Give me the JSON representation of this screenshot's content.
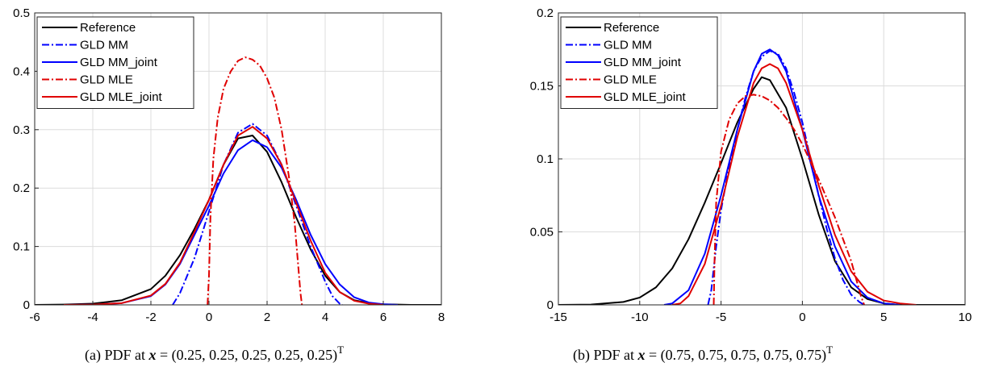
{
  "chart_data": [
    {
      "type": "line",
      "caption": "(a) PDF at x = (0.25, 0.25, 0.25, 0.25, 0.25)^T",
      "caption_parts": {
        "label": "(a) PDF at ",
        "var": "x",
        "vector": " = (0.25, 0.25, 0.25, 0.25, 0.25)",
        "sup": "T"
      },
      "xlim": [
        -6,
        8
      ],
      "ylim": [
        0,
        0.5
      ],
      "xticks": [
        -6,
        -4,
        -2,
        0,
        2,
        4,
        6,
        8
      ],
      "yticks": [
        0,
        0.1,
        0.2,
        0.3,
        0.4,
        0.5
      ],
      "xtick_labels": [
        "-6",
        "-4",
        "-2",
        "0",
        "2",
        "4",
        "6",
        "8"
      ],
      "ytick_labels": [
        "0",
        "0.1",
        "0.2",
        "0.3",
        "0.4",
        "0.5"
      ],
      "grid": true,
      "legend_position": "top-left",
      "series": [
        {
          "name": "Reference",
          "color": "#000000",
          "dash": "solid",
          "x": [
            -6,
            -5,
            -4,
            -3,
            -2,
            -1.5,
            -1,
            -0.5,
            0,
            0.5,
            1,
            1.5,
            2,
            2.5,
            3,
            3.5,
            4,
            4.5,
            5,
            5.5,
            6,
            7,
            8
          ],
          "y": [
            0,
            0.0005,
            0.002,
            0.008,
            0.027,
            0.05,
            0.085,
            0.13,
            0.18,
            0.24,
            0.285,
            0.29,
            0.262,
            0.21,
            0.15,
            0.095,
            0.05,
            0.022,
            0.008,
            0.003,
            0.001,
            0,
            0
          ]
        },
        {
          "name": "GLD MM",
          "color": "#0000ff",
          "dash": "dashdot",
          "x": [
            -1.25,
            -1,
            -0.5,
            0,
            0.5,
            1,
            1.5,
            2,
            2.5,
            3,
            3.5,
            4,
            4.25,
            4.5,
            4.6
          ],
          "y": [
            0,
            0.02,
            0.08,
            0.16,
            0.24,
            0.295,
            0.31,
            0.29,
            0.24,
            0.17,
            0.1,
            0.04,
            0.015,
            0.002,
            0
          ]
        },
        {
          "name": "GLD MM_joint",
          "color": "#0000ff",
          "dash": "solid",
          "x": [
            -5,
            -4,
            -3,
            -2,
            -1.5,
            -1,
            -0.5,
            0,
            0.5,
            1,
            1.5,
            2,
            2.5,
            3,
            3.5,
            4,
            4.5,
            5,
            5.5,
            6,
            6.5
          ],
          "y": [
            0,
            0.0005,
            0.003,
            0.015,
            0.035,
            0.07,
            0.12,
            0.17,
            0.225,
            0.265,
            0.282,
            0.27,
            0.235,
            0.18,
            0.12,
            0.07,
            0.035,
            0.013,
            0.004,
            0.001,
            0
          ]
        },
        {
          "name": "GLD MLE",
          "color": "#e00000",
          "dash": "dashdot",
          "x": [
            -0.05,
            0,
            0.05,
            0.15,
            0.3,
            0.5,
            0.75,
            1,
            1.25,
            1.5,
            1.75,
            2,
            2.25,
            2.5,
            2.75,
            2.95,
            3.05,
            3.15,
            3.2
          ],
          "y": [
            0,
            0.05,
            0.15,
            0.25,
            0.32,
            0.37,
            0.4,
            0.418,
            0.424,
            0.42,
            0.41,
            0.388,
            0.355,
            0.3,
            0.22,
            0.14,
            0.08,
            0.02,
            0
          ]
        },
        {
          "name": "GLD MLE_joint",
          "color": "#e00000",
          "dash": "solid",
          "x": [
            -5,
            -4,
            -3,
            -2,
            -1.5,
            -1,
            -0.5,
            0,
            0.5,
            1,
            1.5,
            2,
            2.5,
            3,
            3.5,
            4,
            4.5,
            5,
            5.5,
            6
          ],
          "y": [
            0,
            0.0005,
            0.003,
            0.016,
            0.036,
            0.072,
            0.125,
            0.18,
            0.24,
            0.29,
            0.305,
            0.285,
            0.24,
            0.175,
            0.11,
            0.055,
            0.022,
            0.007,
            0.002,
            0
          ]
        }
      ]
    },
    {
      "type": "line",
      "caption": "(b) PDF at x = (0.75, 0.75, 0.75, 0.75, 0.75)^T",
      "caption_parts": {
        "label": "(b) PDF at ",
        "var": "x",
        "vector": " = (0.75, 0.75, 0.75, 0.75, 0.75)",
        "sup": "T"
      },
      "xlim": [
        -15,
        10
      ],
      "ylim": [
        0,
        0.2
      ],
      "xticks": [
        -15,
        -10,
        -5,
        0,
        5,
        10
      ],
      "yticks": [
        0,
        0.05,
        0.1,
        0.15,
        0.2
      ],
      "xtick_labels": [
        "-15",
        "-10",
        "-5",
        "0",
        "5",
        "10"
      ],
      "ytick_labels": [
        "0",
        "0.05",
        "0.1",
        "0.15",
        "0.2"
      ],
      "grid": true,
      "legend_position": "top-left",
      "series": [
        {
          "name": "Reference",
          "color": "#000000",
          "dash": "solid",
          "x": [
            -15,
            -13,
            -11,
            -10,
            -9,
            -8,
            -7,
            -6,
            -5,
            -4,
            -3,
            -2.5,
            -2,
            -1,
            0,
            1,
            2,
            3,
            4,
            5,
            6,
            8,
            10
          ],
          "y": [
            0,
            0.0002,
            0.002,
            0.005,
            0.012,
            0.025,
            0.045,
            0.07,
            0.097,
            0.125,
            0.148,
            0.156,
            0.154,
            0.135,
            0.1,
            0.062,
            0.03,
            0.012,
            0.004,
            0.001,
            0,
            0,
            0
          ]
        },
        {
          "name": "GLD MM",
          "color": "#0000ff",
          "dash": "dashdot",
          "x": [
            -5.8,
            -5.6,
            -5.3,
            -5,
            -4.5,
            -4,
            -3.5,
            -3,
            -2.5,
            -2,
            -1.5,
            -1,
            -0.5,
            0,
            0.5,
            1,
            1.5,
            2,
            2.5,
            3,
            3.5,
            3.8
          ],
          "y": [
            0,
            0.01,
            0.04,
            0.065,
            0.095,
            0.12,
            0.142,
            0.16,
            0.17,
            0.174,
            0.172,
            0.162,
            0.145,
            0.125,
            0.1,
            0.075,
            0.052,
            0.032,
            0.017,
            0.007,
            0.002,
            0
          ]
        },
        {
          "name": "GLD MM_joint",
          "color": "#0000ff",
          "dash": "solid",
          "x": [
            -8.5,
            -8,
            -7,
            -6,
            -5,
            -4,
            -3,
            -2.5,
            -2,
            -1.5,
            -1,
            0,
            1,
            2,
            3,
            4,
            5,
            6
          ],
          "y": [
            0,
            0.001,
            0.01,
            0.035,
            0.075,
            0.12,
            0.16,
            0.172,
            0.175,
            0.171,
            0.16,
            0.12,
            0.075,
            0.04,
            0.016,
            0.005,
            0.001,
            0
          ]
        },
        {
          "name": "GLD MLE",
          "color": "#e00000",
          "dash": "dashdot",
          "x": [
            -5.45,
            -5.4,
            -5.3,
            -5,
            -4.5,
            -4,
            -3.5,
            -3,
            -2.5,
            -2,
            -1.5,
            -1,
            -0.5,
            0,
            0.5,
            1,
            1.5,
            2,
            2.5,
            3,
            3.3,
            3.6,
            3.8
          ],
          "y": [
            0,
            0.03,
            0.07,
            0.105,
            0.127,
            0.138,
            0.143,
            0.144,
            0.143,
            0.14,
            0.135,
            0.128,
            0.12,
            0.11,
            0.098,
            0.086,
            0.073,
            0.06,
            0.045,
            0.03,
            0.018,
            0.006,
            0
          ]
        },
        {
          "name": "GLD MLE_joint",
          "color": "#e00000",
          "dash": "solid",
          "x": [
            -8,
            -7.5,
            -7,
            -6,
            -5,
            -4,
            -3,
            -2.5,
            -2,
            -1.5,
            -1,
            0,
            1,
            2,
            3,
            4,
            5,
            6,
            7
          ],
          "y": [
            0,
            0.001,
            0.006,
            0.028,
            0.068,
            0.115,
            0.152,
            0.162,
            0.165,
            0.162,
            0.152,
            0.12,
            0.082,
            0.048,
            0.023,
            0.009,
            0.003,
            0.001,
            0
          ]
        }
      ]
    }
  ]
}
